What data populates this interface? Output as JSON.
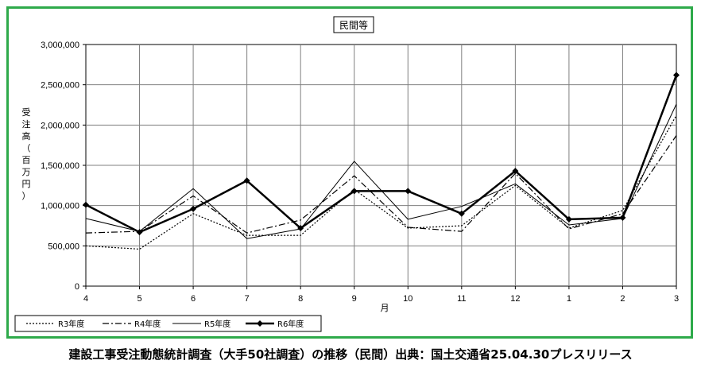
{
  "chart_data": {
    "type": "line",
    "title": "民間等",
    "xlabel": "月",
    "ylabel": "受注高（百万円）",
    "categories": [
      "4",
      "5",
      "6",
      "7",
      "8",
      "9",
      "10",
      "11",
      "12",
      "1",
      "2",
      "3"
    ],
    "yticks": [
      "0",
      "500,000",
      "1,000,000",
      "1,500,000",
      "2,000,000",
      "2,500,000",
      "3,000,000"
    ],
    "ylim": [
      0,
      3000000
    ],
    "grid": true,
    "legend_position": "bottom-left",
    "series": [
      {
        "name": "R3年度",
        "style": "dotted",
        "values": [
          500000,
          460000,
          900000,
          630000,
          630000,
          1200000,
          720000,
          750000,
          1250000,
          720000,
          940000,
          2120000
        ]
      },
      {
        "name": "R4年度",
        "style": "dashdot",
        "values": [
          660000,
          680000,
          1120000,
          660000,
          820000,
          1370000,
          730000,
          680000,
          1400000,
          710000,
          900000,
          1870000
        ]
      },
      {
        "name": "R5年度",
        "style": "solid",
        "values": [
          840000,
          680000,
          1210000,
          590000,
          710000,
          1550000,
          830000,
          990000,
          1270000,
          760000,
          840000,
          2260000
        ]
      },
      {
        "name": "R6年度",
        "style": "solid-marker",
        "values": [
          1010000,
          670000,
          960000,
          1310000,
          720000,
          1180000,
          1180000,
          900000,
          1430000,
          830000,
          850000,
          2620000
        ]
      }
    ]
  },
  "caption": "建設工事受注動態統計調査（大手50社調査）の推移（民間）出典：国土交通省25.04.30プレスリリース",
  "colors": {
    "frame": "#2eaa4a",
    "line": "#000000",
    "grid": "#7f7f7f"
  }
}
